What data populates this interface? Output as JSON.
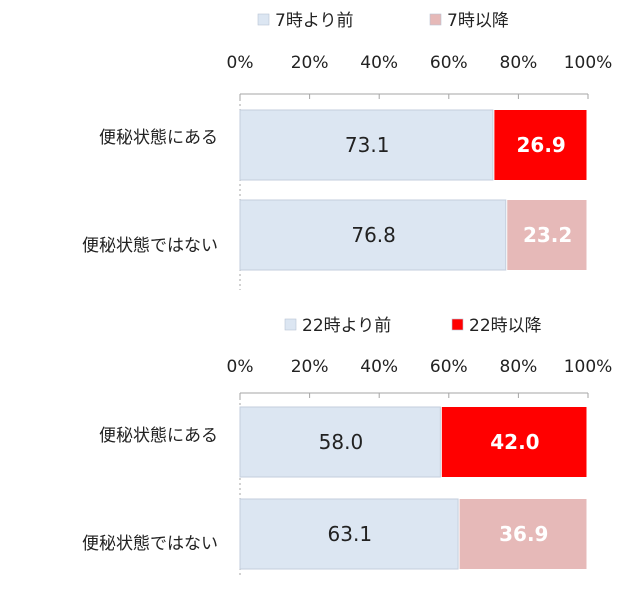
{
  "chart_data": [
    {
      "type": "bar",
      "orientation": "horizontal",
      "stacked": true,
      "categories": [
        "便秘状態にある",
        "便秘状態ではない"
      ],
      "series": [
        {
          "name": "7時より前",
          "values": [
            73.1,
            76.8
          ],
          "color": "#dce6f2"
        },
        {
          "name": "7時以降",
          "values": [
            26.9,
            23.2
          ],
          "colors": [
            "#ff0000",
            "#e6b9b8"
          ]
        }
      ],
      "value_labels": [
        [
          "73.1",
          "76.8"
        ],
        [
          "26.9",
          "23.2"
        ]
      ],
      "value_label_colors": [
        [
          "#222222",
          "#222222"
        ],
        [
          "#ffffff",
          "#ffffff"
        ]
      ],
      "xlim": [
        0,
        100
      ],
      "xticks": [
        "0%",
        "20%",
        "40%",
        "60%",
        "80%",
        "100%"
      ],
      "legend_position": "top",
      "legend_swatch_colors": [
        "#dce6f2",
        "#e6b9b8"
      ]
    },
    {
      "type": "bar",
      "orientation": "horizontal",
      "stacked": true,
      "categories": [
        "便秘状態にある",
        "便秘状態ではない"
      ],
      "series": [
        {
          "name": "22時より前",
          "values": [
            58.0,
            63.1
          ],
          "color": "#dce6f2"
        },
        {
          "name": "22時以降",
          "values": [
            42.0,
            36.9
          ],
          "colors": [
            "#ff0000",
            "#e6b9b8"
          ]
        }
      ],
      "value_labels": [
        [
          "58.0",
          "63.1"
        ],
        [
          "42.0",
          "36.9"
        ]
      ],
      "value_label_colors": [
        [
          "#222222",
          "#222222"
        ],
        [
          "#ffffff",
          "#ffffff"
        ]
      ],
      "xlim": [
        0,
        100
      ],
      "xticks": [
        "0%",
        "20%",
        "40%",
        "60%",
        "80%",
        "100%"
      ],
      "legend_position": "top",
      "legend_swatch_colors": [
        "#dce6f2",
        "#ff0000"
      ]
    }
  ]
}
